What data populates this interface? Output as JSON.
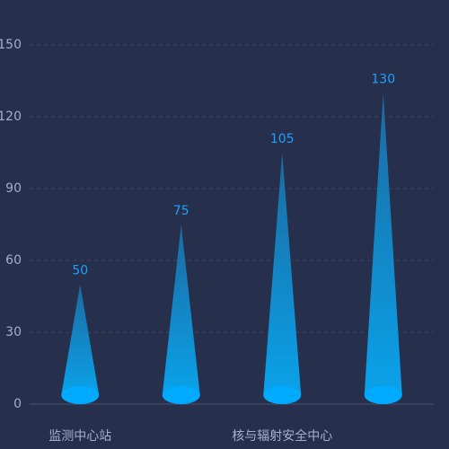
{
  "chart_data": {
    "type": "cone-bar",
    "categories": [
      "监测中心站",
      null,
      "核与辐射安全中心",
      null
    ],
    "values": [
      50,
      75,
      105,
      130
    ],
    "color": "#00aaff",
    "ylim": [
      0,
      150
    ],
    "yticks": [
      0,
      30,
      60,
      90,
      120,
      150
    ],
    "grid": true
  }
}
